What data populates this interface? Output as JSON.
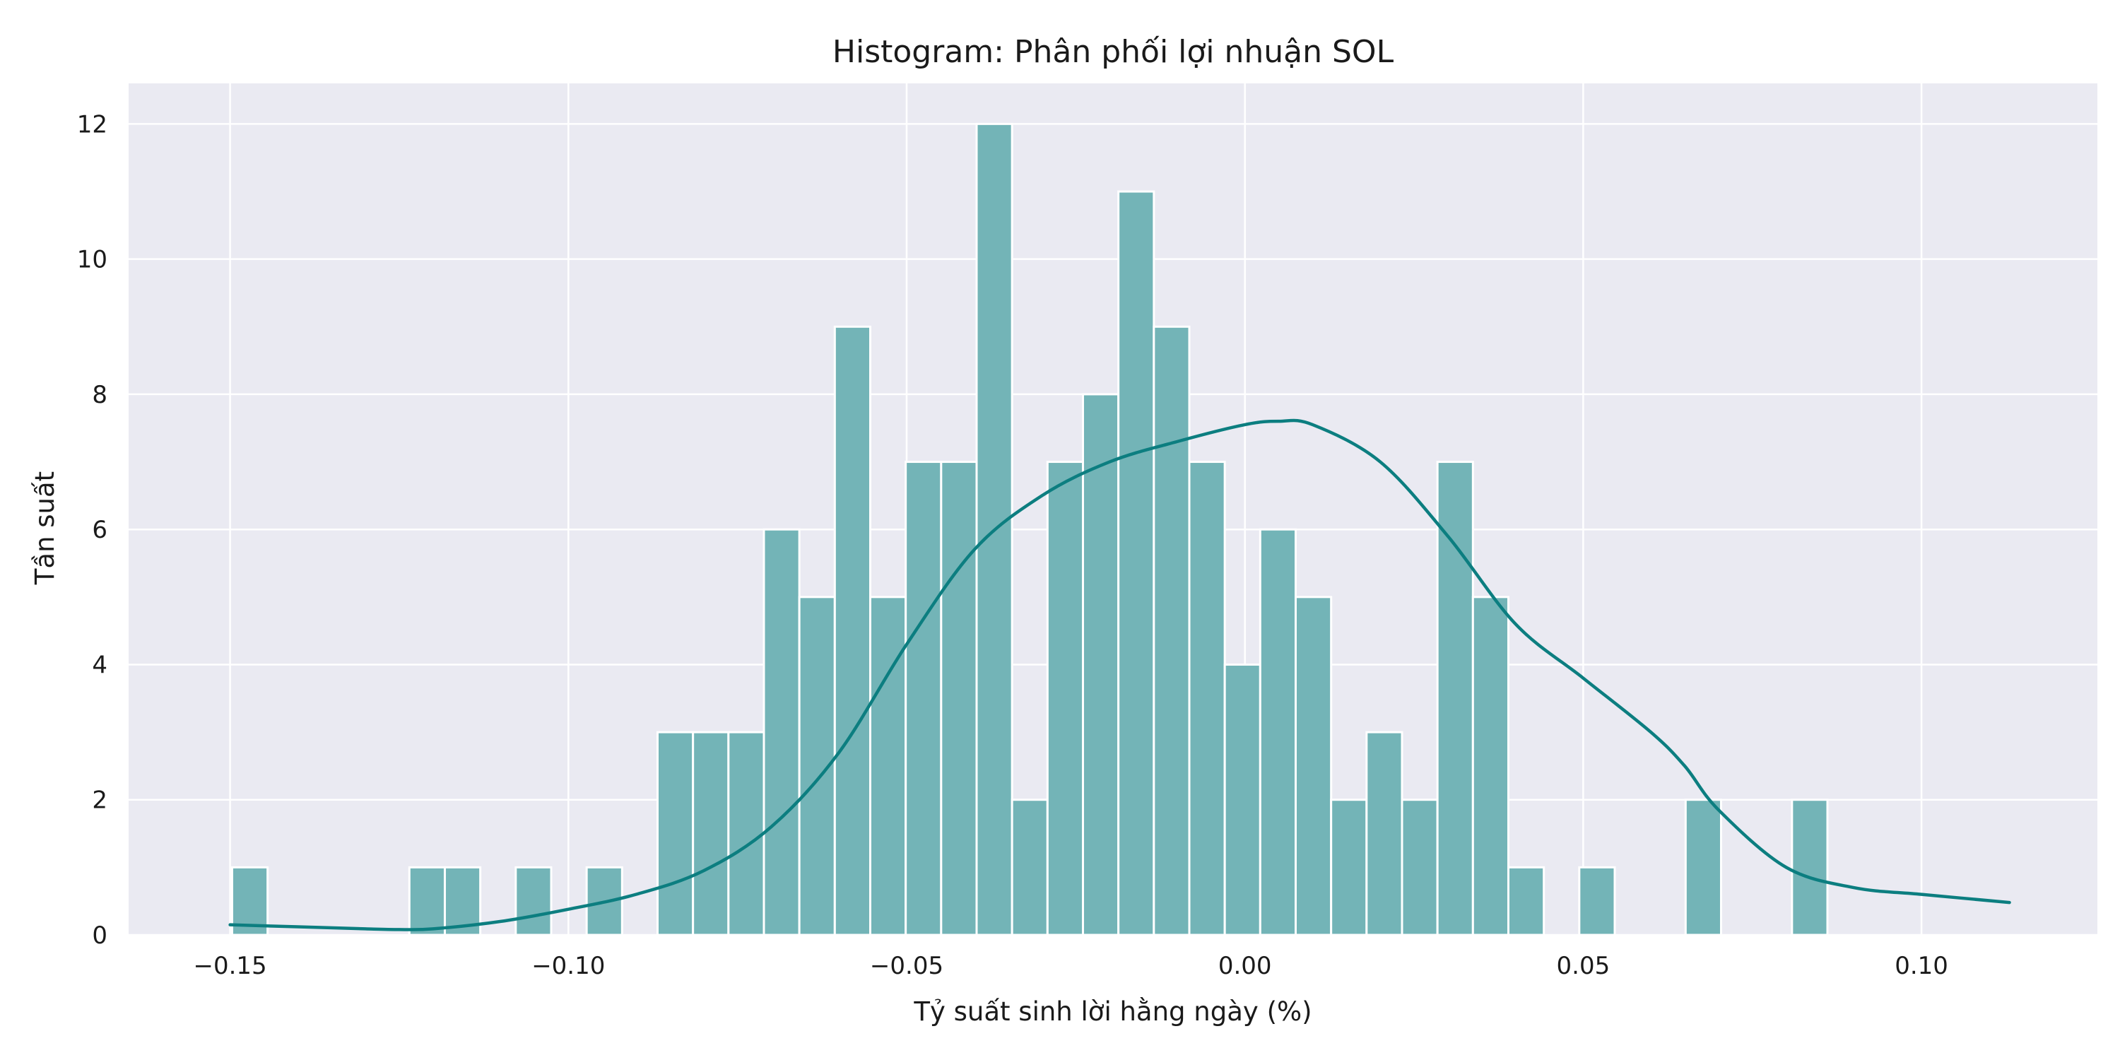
{
  "chart_data": {
    "type": "bar",
    "title": "Histogram: Phân phối lợi nhuận SOL",
    "xlabel": "Tỷ suất sinh lời hằng ngày (%)",
    "ylabel": "Tần suất",
    "xlim": [
      -0.165,
      0.126
    ],
    "ylim": [
      0,
      12.6
    ],
    "x_ticks": [
      {
        "value": -0.15,
        "label": "−0.15"
      },
      {
        "value": -0.1,
        "label": "−0.10"
      },
      {
        "value": -0.05,
        "label": "−0.05"
      },
      {
        "value": 0.0,
        "label": "0.00"
      },
      {
        "value": 0.05,
        "label": "0.05"
      },
      {
        "value": 0.1,
        "label": "0.10"
      }
    ],
    "y_ticks": [
      {
        "value": 0,
        "label": "0"
      },
      {
        "value": 2,
        "label": "2"
      },
      {
        "value": 4,
        "label": "4"
      },
      {
        "value": 6,
        "label": "6"
      },
      {
        "value": 8,
        "label": "8"
      },
      {
        "value": 10,
        "label": "10"
      },
      {
        "value": 12,
        "label": "12"
      }
    ],
    "grid": true,
    "bin_start": -0.1497,
    "bin_width": 0.00524,
    "counts": [
      1,
      0,
      0,
      0,
      0,
      1,
      1,
      0,
      1,
      0,
      1,
      0,
      3,
      3,
      3,
      6,
      5,
      9,
      5,
      7,
      7,
      12,
      2,
      7,
      8,
      11,
      9,
      7,
      4,
      6,
      5,
      2,
      3,
      2,
      7,
      5,
      1,
      0,
      1,
      0,
      0,
      2,
      0,
      0,
      2
    ],
    "kde": {
      "x": [
        -0.15,
        -0.14,
        -0.13,
        -0.125,
        -0.12,
        -0.11,
        -0.1,
        -0.09,
        -0.08,
        -0.07,
        -0.06,
        -0.05,
        -0.04,
        -0.03,
        -0.02,
        -0.01,
        0.0,
        0.005,
        0.01,
        0.02,
        0.03,
        0.04,
        0.05,
        0.06,
        0.065,
        0.07,
        0.08,
        0.09,
        0.1,
        0.113
      ],
      "y": [
        0.15,
        0.12,
        0.09,
        0.08,
        0.09,
        0.2,
        0.38,
        0.6,
        0.95,
        1.6,
        2.7,
        4.3,
        5.7,
        6.5,
        7.0,
        7.3,
        7.55,
        7.6,
        7.55,
        7.0,
        5.9,
        4.6,
        3.8,
        3.0,
        2.5,
        1.85,
        1.0,
        0.7,
        0.6,
        0.48
      ]
    },
    "colors": {
      "background": "#eaeaf2",
      "grid": "#ffffff",
      "bar_fill": "#73b4b7",
      "bar_edge": "#ffffff",
      "kde_line": "#0c7e80"
    }
  }
}
